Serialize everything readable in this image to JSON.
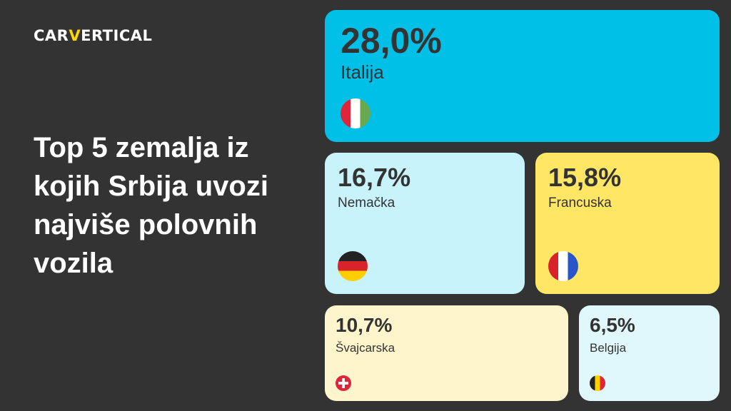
{
  "logo": {
    "part1": "CAR",
    "part2": "V",
    "part3": "ERTICAL"
  },
  "title": "Top 5 zemalja iz kojih Srbija uvozi najviše polovnih vozila",
  "chart_data": {
    "type": "treemap",
    "title": "Top 5 zemalja iz kojih Srbija uvozi najviše polovnih vozila",
    "categories": [
      "Italija",
      "Nemačka",
      "Francuska",
      "Švajcarska",
      "Belgija"
    ],
    "values": [
      28.0,
      16.7,
      15.8,
      10.7,
      6.5
    ],
    "labels": [
      "28,0%",
      "16,7%",
      "15,8%",
      "10,7%",
      "6,5%"
    ],
    "colors": [
      "#00c0e8",
      "#c8f3fb",
      "#ffe664",
      "#fff5cc",
      "#e0f8fc"
    ],
    "icons": [
      "italy-flag-icon",
      "germany-flag-icon",
      "france-flag-icon",
      "switzerland-flag-icon",
      "belgium-flag-icon"
    ]
  }
}
